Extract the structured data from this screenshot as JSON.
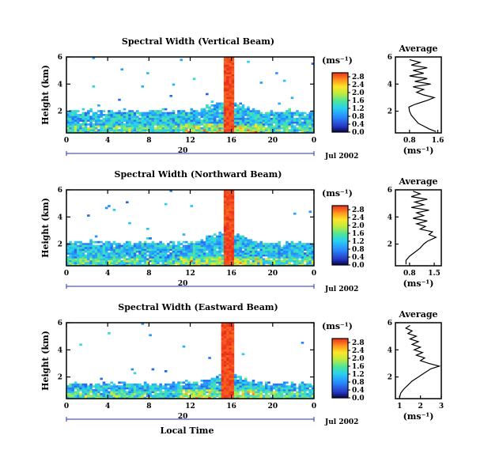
{
  "figure": {
    "date_label": "Jul 2002",
    "xlabel": "Local Time",
    "ylabel": "Height (km)",
    "unit_label": "(ms⁻¹)",
    "profile_title": "Average",
    "profile_xlabel": "(ms⁻¹)"
  },
  "chart_data": [
    {
      "type": "heatmap",
      "title": "Spectral Width (Vertical Beam)",
      "x": {
        "ticks": [
          "0",
          "4",
          "8",
          "12",
          "16",
          "20",
          "0"
        ],
        "range_hours": [
          0,
          24
        ],
        "date_tick": "20",
        "date_label": "Jul 2002"
      },
      "y": {
        "ticks": [
          "2",
          "4",
          "6"
        ],
        "range_km": [
          0.4,
          6.0
        ]
      },
      "colorbar": {
        "ticks": [
          "0.0",
          "0.4",
          "0.8",
          "1.2",
          "1.6",
          "2.0",
          "2.4",
          "2.8"
        ],
        "range": [
          0.0,
          3.0
        ]
      },
      "profile": {
        "title": "Average",
        "xticks": [
          "0.8",
          "1.6"
        ],
        "xrange": [
          0.4,
          1.7
        ],
        "xticks_values": [
          0.8,
          1.6
        ],
        "values": [
          [
            1.55,
            0.5
          ],
          [
            1.35,
            0.7
          ],
          [
            1.2,
            0.9
          ],
          [
            1.05,
            1.1
          ],
          [
            0.95,
            1.4
          ],
          [
            0.85,
            1.7
          ],
          [
            0.8,
            2.0
          ],
          [
            0.78,
            2.3
          ],
          [
            0.95,
            2.5
          ],
          [
            1.3,
            2.8
          ],
          [
            1.5,
            3.0
          ],
          [
            1.2,
            3.2
          ],
          [
            1.0,
            3.4
          ],
          [
            1.2,
            3.6
          ],
          [
            0.9,
            3.8
          ],
          [
            1.4,
            4.0
          ],
          [
            0.95,
            4.2
          ],
          [
            1.3,
            4.4
          ],
          [
            0.8,
            4.6
          ],
          [
            1.2,
            4.8
          ],
          [
            0.9,
            5.0
          ],
          [
            1.3,
            5.2
          ],
          [
            0.85,
            5.4
          ],
          [
            1.1,
            5.6
          ],
          [
            0.8,
            5.8
          ]
        ]
      },
      "features": {
        "surface_layer_top_km": 2.0,
        "intense_band_hours": [
          15.3,
          16.3
        ],
        "intense_value": 2.9
      }
    },
    {
      "type": "heatmap",
      "title": "Spectral Width (Northward Beam)",
      "x": {
        "ticks": [
          "0",
          "4",
          "8",
          "12",
          "16",
          "20",
          "0"
        ],
        "range_hours": [
          0,
          24
        ],
        "date_tick": "20",
        "date_label": "Jul 2002"
      },
      "y": {
        "ticks": [
          "2",
          "4",
          "6"
        ],
        "range_km": [
          0.4,
          6.0
        ]
      },
      "colorbar": {
        "ticks": [
          "0.0",
          "0.4",
          "0.8",
          "1.2",
          "1.6",
          "2.0",
          "2.4",
          "2.8"
        ],
        "range": [
          0.0,
          3.0
        ]
      },
      "profile": {
        "title": "Average",
        "xticks": [
          "0.8",
          "1.5"
        ],
        "xrange": [
          0.4,
          1.7
        ],
        "xticks_values": [
          0.8,
          1.5
        ],
        "values": [
          [
            0.7,
            0.5
          ],
          [
            0.7,
            0.8
          ],
          [
            0.8,
            1.1
          ],
          [
            0.95,
            1.4
          ],
          [
            1.1,
            1.7
          ],
          [
            1.2,
            2.0
          ],
          [
            1.3,
            2.2
          ],
          [
            1.55,
            2.5
          ],
          [
            1.35,
            2.7
          ],
          [
            1.45,
            2.9
          ],
          [
            1.1,
            3.1
          ],
          [
            1.25,
            3.3
          ],
          [
            1.0,
            3.5
          ],
          [
            1.3,
            3.7
          ],
          [
            0.9,
            3.9
          ],
          [
            1.2,
            4.1
          ],
          [
            1.0,
            4.3
          ],
          [
            1.35,
            4.5
          ],
          [
            0.85,
            4.7
          ],
          [
            1.2,
            4.9
          ],
          [
            0.95,
            5.1
          ],
          [
            1.3,
            5.3
          ],
          [
            0.85,
            5.5
          ],
          [
            1.1,
            5.7
          ],
          [
            0.9,
            5.9
          ]
        ]
      },
      "features": {
        "surface_layer_top_km": 2.1,
        "intense_band_hours": [
          15.2,
          16.3
        ],
        "intense_value": 2.9
      }
    },
    {
      "type": "heatmap",
      "title": "Spectral Width (Eastward Beam)",
      "x": {
        "ticks": [
          "0",
          "4",
          "8",
          "12",
          "16",
          "20",
          "0"
        ],
        "range_hours": [
          0,
          24
        ],
        "date_tick": "20",
        "date_label": "Jul 2002"
      },
      "y": {
        "ticks": [
          "2",
          "4",
          "6"
        ],
        "range_km": [
          0.4,
          6.0
        ]
      },
      "colorbar": {
        "ticks": [
          "0.0",
          "0.4",
          "0.8",
          "1.2",
          "1.6",
          "2.0",
          "2.4",
          "2.8"
        ],
        "range": [
          0.0,
          3.0
        ]
      },
      "profile": {
        "title": "Average",
        "xticks": [
          "1",
          "2",
          "3"
        ],
        "xrange": [
          0.8,
          3.0
        ],
        "xticks_values": [
          1,
          2,
          3
        ],
        "values": [
          [
            1.0,
            0.5
          ],
          [
            1.05,
            0.8
          ],
          [
            1.2,
            1.1
          ],
          [
            1.4,
            1.4
          ],
          [
            1.6,
            1.7
          ],
          [
            1.9,
            2.0
          ],
          [
            2.2,
            2.3
          ],
          [
            2.5,
            2.6
          ],
          [
            2.9,
            2.8
          ],
          [
            2.4,
            3.0
          ],
          [
            2.0,
            3.2
          ],
          [
            2.2,
            3.4
          ],
          [
            1.8,
            3.6
          ],
          [
            2.1,
            3.8
          ],
          [
            1.7,
            4.0
          ],
          [
            2.0,
            4.2
          ],
          [
            1.6,
            4.4
          ],
          [
            1.9,
            4.6
          ],
          [
            1.5,
            4.8
          ],
          [
            1.8,
            5.0
          ],
          [
            1.4,
            5.2
          ],
          [
            1.6,
            5.4
          ],
          [
            1.3,
            5.6
          ],
          [
            1.5,
            5.8
          ]
        ]
      },
      "features": {
        "surface_layer_top_km": 1.5,
        "intense_band_hours": [
          15.1,
          16.3
        ],
        "intense_value": 2.9
      }
    }
  ]
}
